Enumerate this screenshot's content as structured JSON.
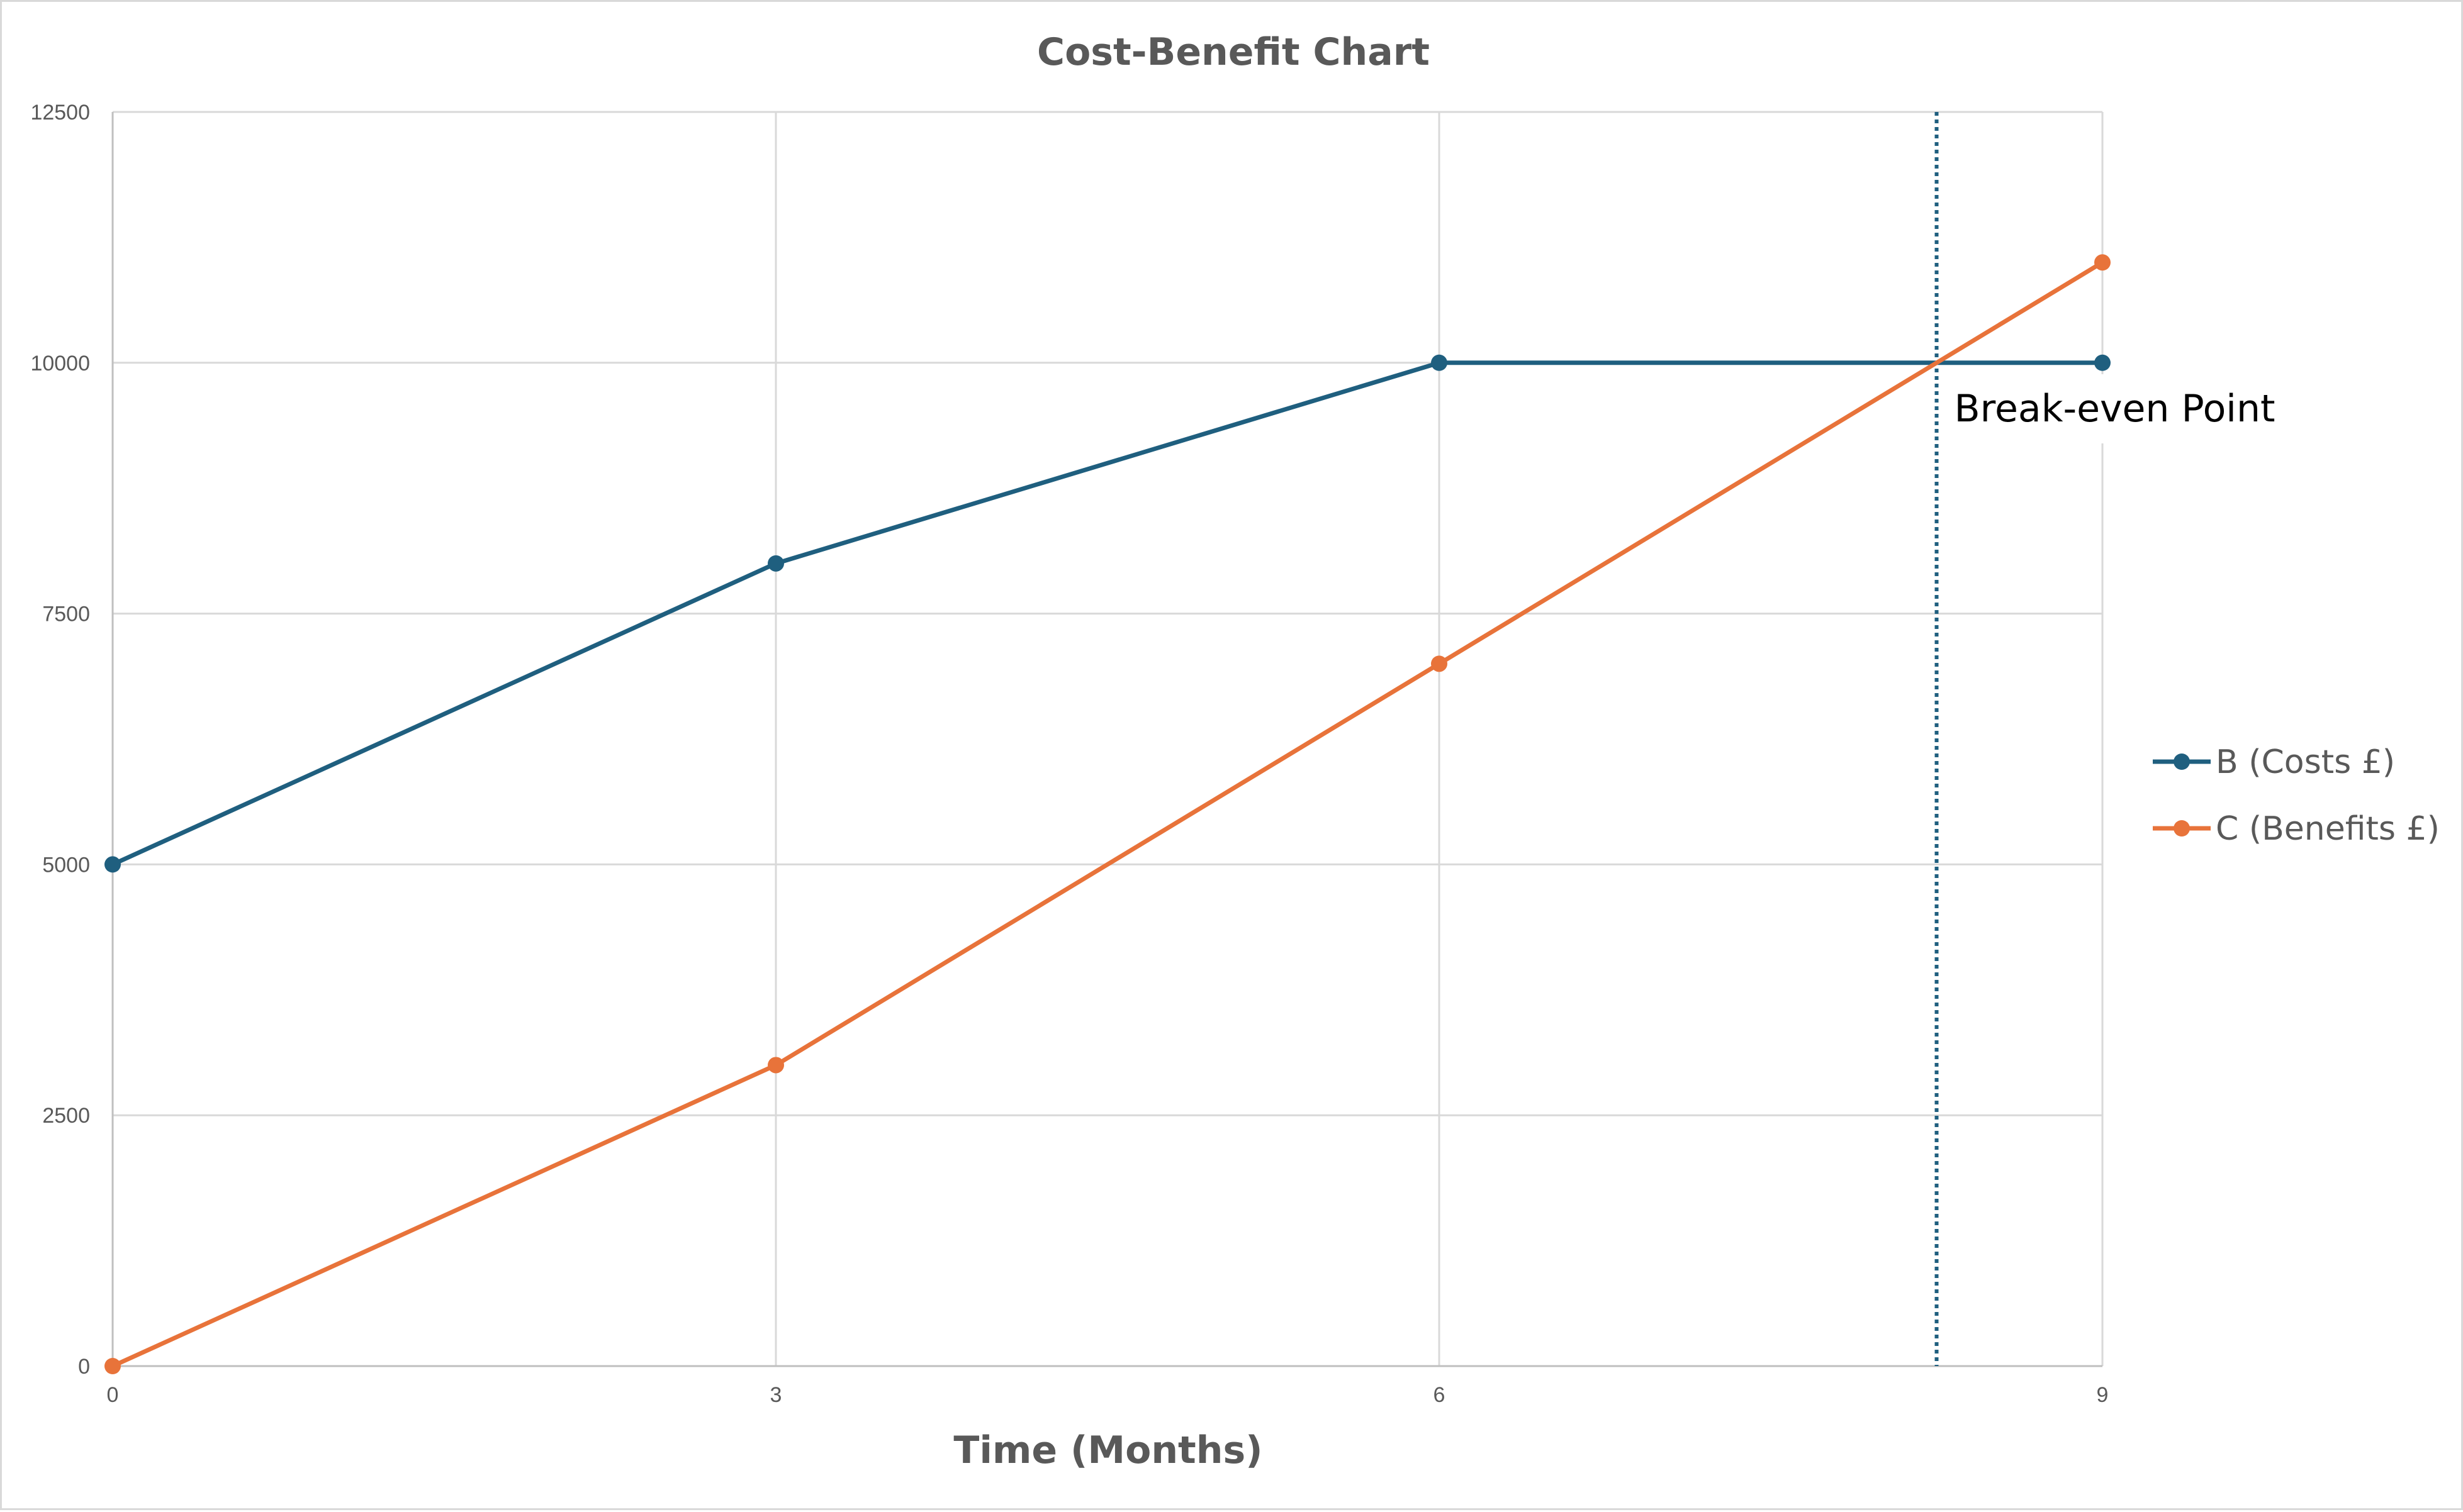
{
  "chart_data": {
    "type": "line",
    "title": "Cost-Benefit Chart",
    "xlabel": "Time (Months)",
    "ylabel": "",
    "x": [
      0,
      3,
      6,
      9
    ],
    "x_ticks": [
      "0",
      "3",
      "6",
      "9"
    ],
    "y_ticks": [
      "0",
      "2500",
      "5000",
      "7500",
      "10000",
      "12500"
    ],
    "xlim": [
      0,
      9
    ],
    "ylim": [
      0,
      12500
    ],
    "grid": true,
    "legend_position": "right",
    "series": [
      {
        "name": "B (Costs £)",
        "values": [
          5000,
          8000,
          10000,
          10000
        ],
        "color": "#1f5f7f",
        "marker": "circle"
      },
      {
        "name": "C (Benefits £)",
        "values": [
          0,
          3000,
          7000,
          11000
        ],
        "color": "#e8733a",
        "marker": "circle"
      }
    ],
    "annotations": [
      {
        "text": "Break-even Point",
        "x": 8.25,
        "line_style": "dotted",
        "line_color": "#1f5f7f"
      }
    ]
  }
}
